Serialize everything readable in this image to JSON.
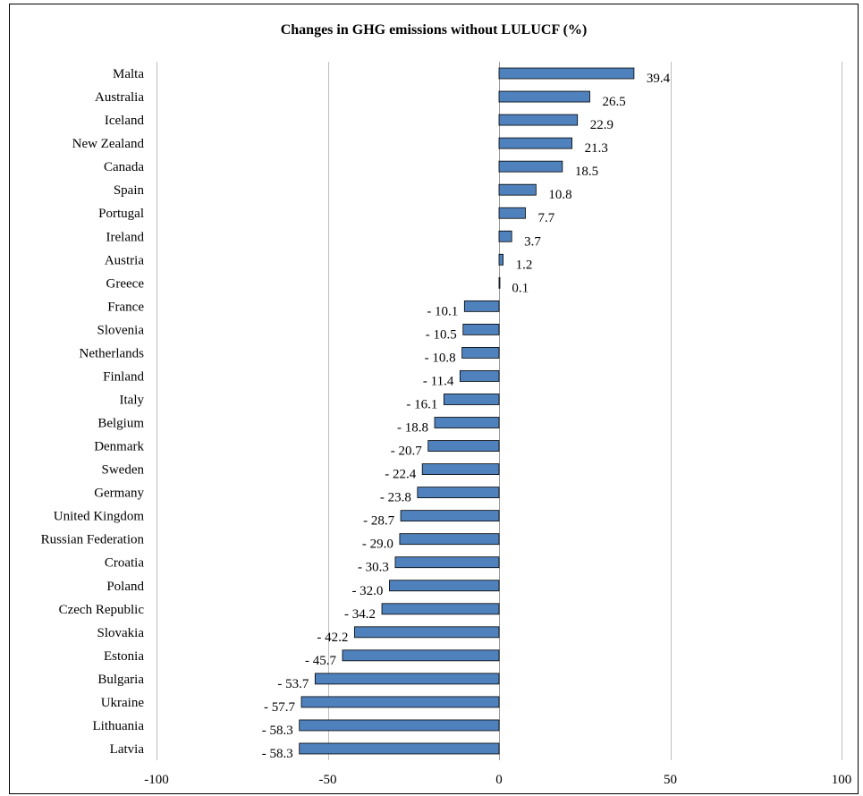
{
  "chart_data": {
    "type": "bar",
    "orientation": "horizontal",
    "title": "Changes in GHG emissions without LULUCF (%)",
    "xlabel": "",
    "ylabel": "",
    "xlim": [
      -100,
      100
    ],
    "x_ticks": [
      -100,
      -50,
      0,
      50,
      100
    ],
    "x_tick_labels": [
      "-100",
      "-50",
      "0",
      "50",
      "100"
    ],
    "grid": "vertical",
    "legend": "none",
    "bar_color": "#4F81BD",
    "bar_edge_color": "#000000",
    "categories": [
      "Malta",
      "Australia",
      "Iceland",
      "New Zealand",
      "Canada",
      "Spain",
      "Portugal",
      "Ireland",
      "Austria",
      "Greece",
      "France",
      "Slovenia",
      "Netherlands",
      "Finland",
      "Italy",
      "Belgium",
      "Denmark",
      "Sweden",
      "Germany",
      "United Kingdom",
      "Russian Federation",
      "Croatia",
      "Poland",
      "Czech Republic",
      "Slovakia",
      "Estonia",
      "Bulgaria",
      "Ukraine",
      "Lithuania",
      "Latvia"
    ],
    "values": [
      39.4,
      26.5,
      22.9,
      21.3,
      18.5,
      10.8,
      7.7,
      3.7,
      1.2,
      0.1,
      -10.1,
      -10.5,
      -10.8,
      -11.4,
      -16.1,
      -18.8,
      -20.7,
      -22.4,
      -23.8,
      -28.7,
      -29.0,
      -30.3,
      -32.0,
      -34.2,
      -42.2,
      -45.7,
      -53.7,
      -57.7,
      -58.3,
      -58.3
    ],
    "data_labels": [
      "39.4",
      "26.5",
      "22.9",
      "21.3",
      "18.5",
      "10.8",
      "7.7",
      "3.7",
      "1.2",
      "0.1",
      "- 10.1",
      "- 10.5",
      "- 10.8",
      "- 11.4",
      "- 16.1",
      "- 18.8",
      "- 20.7",
      "- 22.4",
      "- 23.8",
      "- 28.7",
      "- 29.0",
      "- 30.3",
      "- 32.0",
      "- 34.2",
      "- 42.2",
      "- 45.7",
      "- 53.7",
      "- 57.7",
      "- 58.3",
      "- 58.3"
    ]
  }
}
